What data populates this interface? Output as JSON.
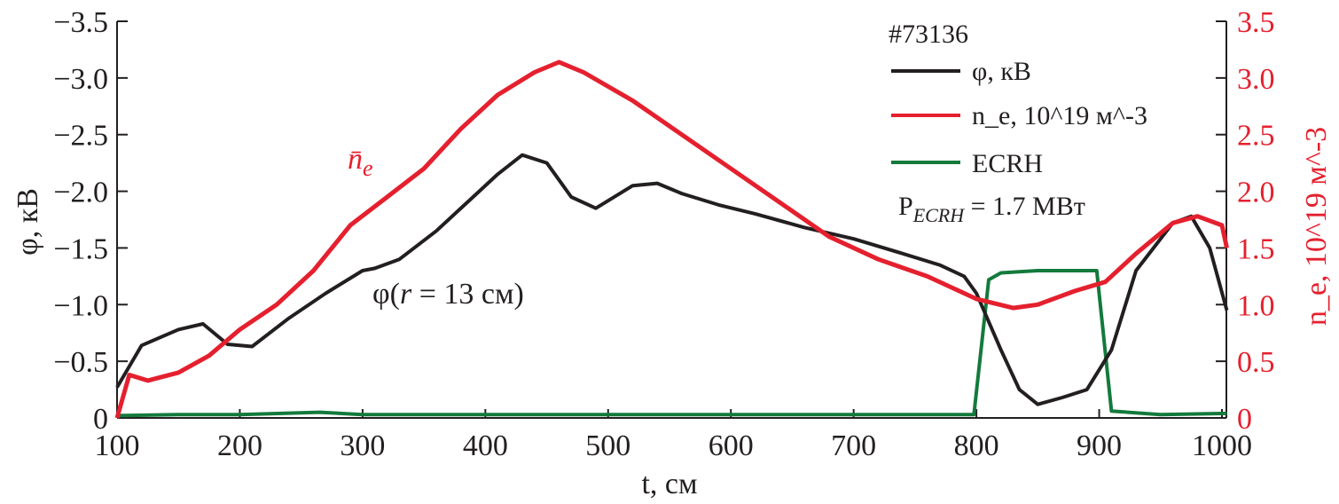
{
  "chart_data": {
    "type": "line",
    "xlabel": "t, см",
    "ylabel_left": "φ, кВ",
    "ylabel_right": "n_e, 10^19 м^-3",
    "ylabel_right_parts": {
      "main": "n",
      "sub": "e",
      "mid": ", 10",
      "sup": "19",
      "unit": " м",
      "unitsup": "−3"
    },
    "xlim": [
      100,
      1004
    ],
    "ylim_left": [
      0,
      -3.5
    ],
    "ylim_right": [
      0,
      3.5
    ],
    "xticks": [
      100,
      200,
      300,
      400,
      500,
      600,
      700,
      800,
      900,
      1000
    ],
    "yticks_left": [
      "0",
      "−0.5",
      "−1.0",
      "−1.5",
      "−2.0",
      "−2.5",
      "−3.0",
      "−3.5"
    ],
    "yticks_right": [
      "0",
      "0.5",
      "1.0",
      "1.5",
      "2.0",
      "2.5",
      "3.0",
      "3.5"
    ],
    "colors": {
      "phi": "#231f20",
      "ne": "#e5202e",
      "ecrh": "#137a3c",
      "axis": "#231f20"
    },
    "legend": {
      "shot": "#73136",
      "items": [
        "φ, кВ",
        "n_e, 10^19 м^-3",
        "ECRH"
      ],
      "phi": "φ, кВ",
      "ne_main": "n",
      "ne_sub": "e",
      "ne_mid": ", 10",
      "ne_sup": "19",
      "ne_unit": " м",
      "ne_unitsup": "−3",
      "ecrh": "ECRH",
      "power_p": "P",
      "power_sub": "ECRH",
      "power_val": " = 1.7 МВт",
      "placement": "top-right"
    },
    "annotations": {
      "ne_main": "n̄",
      "ne_sub": "e",
      "phi_pre": "φ(",
      "phi_r": "r",
      "phi_post": " = 13 см)"
    },
    "series": [
      {
        "name": "φ, кВ",
        "axis": "left",
        "color": "#231f20",
        "points": [
          [
            100,
            0.27
          ],
          [
            120,
            0.64
          ],
          [
            150,
            0.78
          ],
          [
            170,
            0.83
          ],
          [
            190,
            0.65
          ],
          [
            210,
            0.63
          ],
          [
            240,
            0.88
          ],
          [
            270,
            1.1
          ],
          [
            300,
            1.3
          ],
          [
            310,
            1.32
          ],
          [
            330,
            1.4
          ],
          [
            360,
            1.65
          ],
          [
            390,
            1.95
          ],
          [
            410,
            2.15
          ],
          [
            430,
            2.32
          ],
          [
            450,
            2.25
          ],
          [
            470,
            1.95
          ],
          [
            490,
            1.85
          ],
          [
            520,
            2.05
          ],
          [
            540,
            2.07
          ],
          [
            560,
            1.98
          ],
          [
            590,
            1.88
          ],
          [
            620,
            1.8
          ],
          [
            660,
            1.68
          ],
          [
            700,
            1.58
          ],
          [
            740,
            1.45
          ],
          [
            770,
            1.35
          ],
          [
            790,
            1.25
          ],
          [
            800,
            1.1
          ],
          [
            820,
            0.6
          ],
          [
            835,
            0.25
          ],
          [
            850,
            0.12
          ],
          [
            870,
            0.18
          ],
          [
            890,
            0.25
          ],
          [
            910,
            0.6
          ],
          [
            930,
            1.3
          ],
          [
            960,
            1.72
          ],
          [
            975,
            1.78
          ],
          [
            990,
            1.5
          ],
          [
            1004,
            0.95
          ]
        ]
      },
      {
        "name": "n_e, 10^19 м^-3",
        "axis": "right",
        "color": "#e5202e",
        "points": [
          [
            100,
            0
          ],
          [
            110,
            0.38
          ],
          [
            125,
            0.33
          ],
          [
            150,
            0.4
          ],
          [
            175,
            0.55
          ],
          [
            200,
            0.78
          ],
          [
            230,
            1.0
          ],
          [
            260,
            1.3
          ],
          [
            290,
            1.7
          ],
          [
            320,
            1.95
          ],
          [
            350,
            2.2
          ],
          [
            380,
            2.55
          ],
          [
            410,
            2.85
          ],
          [
            440,
            3.05
          ],
          [
            460,
            3.14
          ],
          [
            480,
            3.05
          ],
          [
            520,
            2.8
          ],
          [
            560,
            2.5
          ],
          [
            600,
            2.2
          ],
          [
            640,
            1.9
          ],
          [
            680,
            1.6
          ],
          [
            720,
            1.4
          ],
          [
            760,
            1.25
          ],
          [
            800,
            1.05
          ],
          [
            830,
            0.97
          ],
          [
            850,
            1.0
          ],
          [
            880,
            1.12
          ],
          [
            905,
            1.2
          ],
          [
            930,
            1.45
          ],
          [
            960,
            1.72
          ],
          [
            980,
            1.78
          ],
          [
            1000,
            1.7
          ],
          [
            1004,
            1.5
          ]
        ]
      },
      {
        "name": "ECRH",
        "axis": "right",
        "color": "#137a3c",
        "points": [
          [
            100,
            0.02
          ],
          [
            150,
            0.03
          ],
          [
            200,
            0.03
          ],
          [
            265,
            0.05
          ],
          [
            300,
            0.03
          ],
          [
            400,
            0.03
          ],
          [
            500,
            0.03
          ],
          [
            600,
            0.03
          ],
          [
            700,
            0.03
          ],
          [
            798,
            0.03
          ],
          [
            810,
            1.22
          ],
          [
            820,
            1.28
          ],
          [
            850,
            1.3
          ],
          [
            898,
            1.3
          ],
          [
            910,
            0.06
          ],
          [
            950,
            0.03
          ],
          [
            1004,
            0.04
          ]
        ]
      }
    ]
  }
}
